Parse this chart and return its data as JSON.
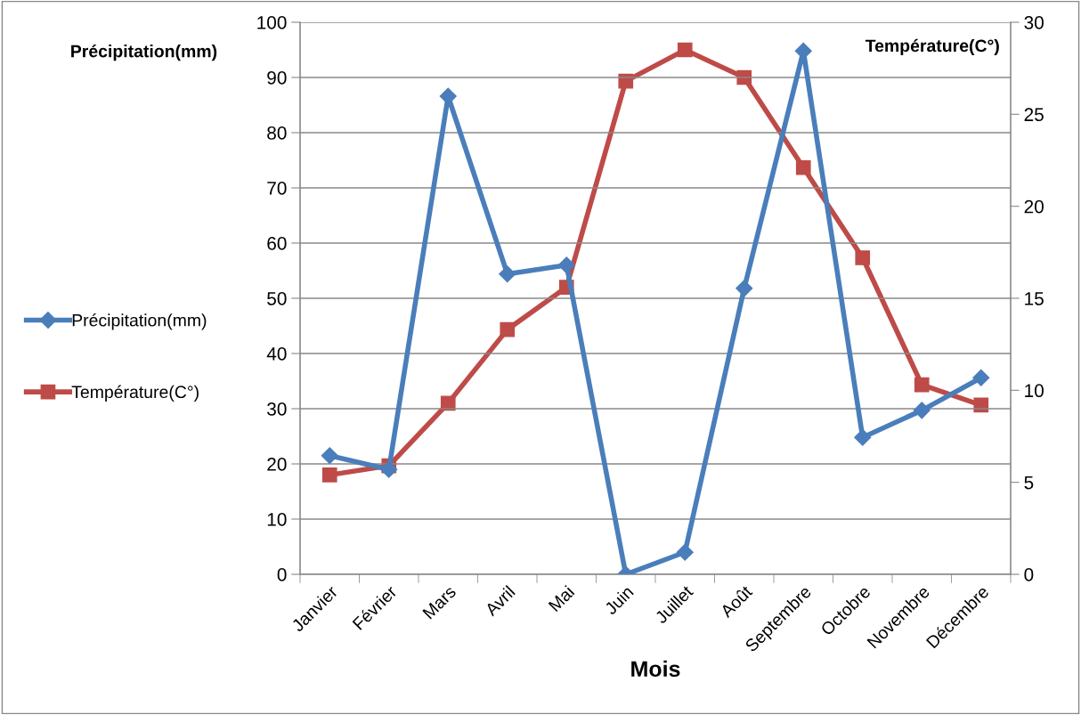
{
  "chart_data": {
    "type": "line",
    "xlabel": "Mois",
    "ylabel": "Précipitation(mm)",
    "y2label": "Température(C°)",
    "categories": [
      "Janvier",
      "Février",
      "Mars",
      "Avril",
      "Mai",
      "Juin",
      "Juillet",
      "Août",
      "Septembre",
      "Octobre",
      "Novembre",
      "Décembre"
    ],
    "series": [
      {
        "name": "Précipitation(mm)",
        "color": "#4a7ebb",
        "marker": "diamond",
        "values": [
          21.5,
          19,
          86.6,
          54.4,
          56,
          0,
          4,
          51.8,
          94.8,
          24.8,
          29.7,
          35.6
        ]
      },
      {
        "name": "Température(C°)",
        "color": "#be4b48",
        "marker": "square",
        "axis": "y2",
        "values": [
          5.4,
          5.9,
          9.3,
          13.3,
          15.6,
          26.8,
          28.5,
          27,
          22.1,
          17.2,
          10.3,
          9.2
        ]
      }
    ],
    "ylim": [
      0,
      100
    ],
    "yticks": [
      0,
      10,
      20,
      30,
      40,
      50,
      60,
      70,
      80,
      90,
      100
    ],
    "y2lim": [
      0,
      30
    ],
    "y2ticks": [
      0,
      5,
      10,
      15,
      20,
      25,
      30
    ],
    "grid": "y",
    "legend": "left"
  }
}
